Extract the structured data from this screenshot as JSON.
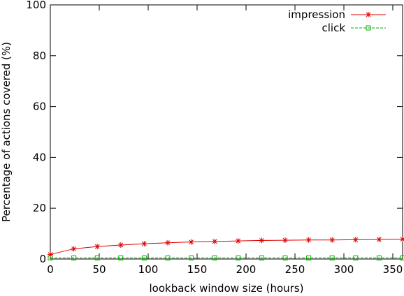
{
  "chart_data": {
    "type": "line",
    "title": "",
    "xlabel": "lookback window size (hours)",
    "ylabel": "Percentage of actions covered (%)",
    "xlim": [
      0,
      360
    ],
    "ylim": [
      0,
      100
    ],
    "xticks": [
      0,
      50,
      100,
      150,
      200,
      250,
      300,
      350
    ],
    "yticks": [
      0,
      20,
      40,
      60,
      80,
      100
    ],
    "grid": false,
    "legend_position": "top-right",
    "x": [
      0,
      24,
      48,
      72,
      96,
      120,
      144,
      168,
      192,
      216,
      240,
      264,
      288,
      312,
      336,
      360
    ],
    "series": [
      {
        "name": "impression",
        "color": "#e00000",
        "marker": "star",
        "values": [
          1.8,
          4.0,
          4.9,
          5.5,
          6.0,
          6.4,
          6.7,
          6.9,
          7.1,
          7.3,
          7.4,
          7.5,
          7.5,
          7.6,
          7.7,
          7.8
        ]
      },
      {
        "name": "click",
        "color": "#00b000",
        "marker": "square",
        "line_style": "dashed",
        "values": [
          0.4,
          0.4,
          0.4,
          0.4,
          0.4,
          0.4,
          0.4,
          0.4,
          0.4,
          0.4,
          0.4,
          0.4,
          0.4,
          0.4,
          0.4,
          0.4
        ]
      }
    ]
  }
}
